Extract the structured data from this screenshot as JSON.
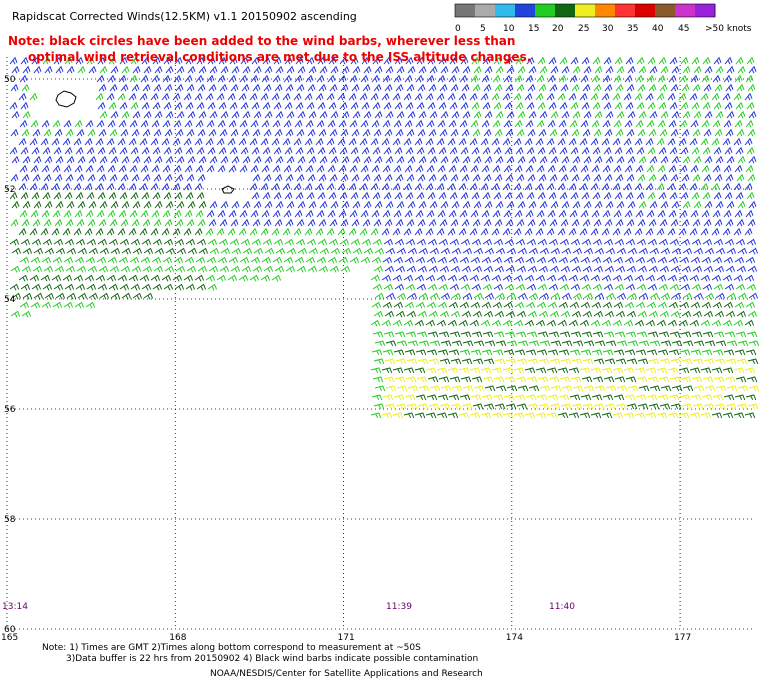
{
  "title": "Rapidscat Corrected Winds(12.5KM) v1.1 20150902 ascending",
  "warning_lines": [
    "Note: black circles have been added to the wind barbs, wherever less than",
    "optimal wind retrieval conditions are met due to the ISS altitude changes."
  ],
  "legend": {
    "labels": [
      "0",
      "5",
      "10",
      "15",
      "20",
      "25",
      "30",
      "35",
      "40",
      "45",
      ">50 knots"
    ],
    "colors": [
      "#777777",
      "#aaaaaa",
      "#33bbee",
      "#2244dd",
      "#22cc22",
      "#116611",
      "#eeee22",
      "#ff8800",
      "#ff3333",
      "#dd0000",
      "#8b5a2b",
      "#cc33cc",
      "#9922dd"
    ]
  },
  "lat_labels": [
    "50",
    "52",
    "54",
    "56",
    "58",
    "60"
  ],
  "lon_labels": [
    "165",
    "168",
    "171",
    "174",
    "177"
  ],
  "time_labels": [
    "13:14",
    "11:39",
    "11:40"
  ],
  "footer_lines": [
    "Note: 1) Times are GMT 2)Times along bottom correspond to measurement at ~50S",
    "3)Data buffer is 22 hrs from 20150902 4) Black wind barbs indicate possible contamination",
    "NOAA/NESDIS/Center for Satellite Applications and Research"
  ],
  "map_data": {
    "lat_range": [
      -60,
      -49.6
    ],
    "lon_range": [
      165,
      178.3
    ],
    "barb_color_groups": [
      "blue",
      "green",
      "dark-green",
      "yellow"
    ]
  }
}
